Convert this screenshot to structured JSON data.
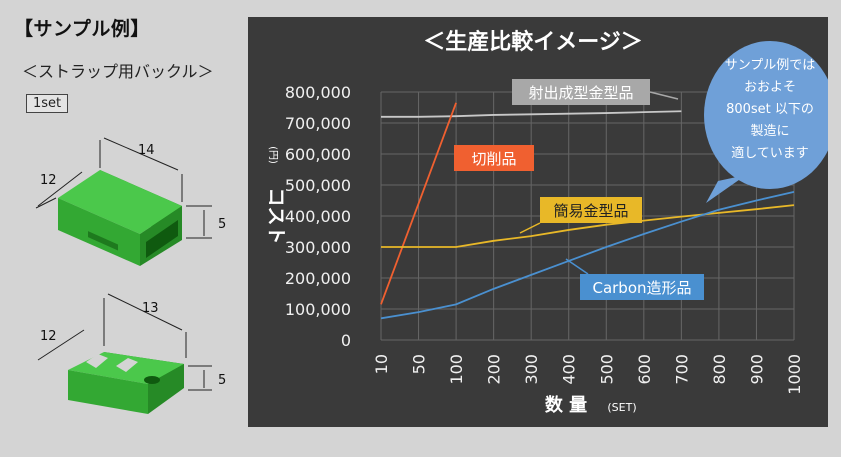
{
  "page": {
    "sample_title": "【サンプル例】",
    "sample_subtitle": "＜ストラップ用バックル＞",
    "quantity_badge": "1set",
    "part1_dims": [
      "14",
      "12",
      "5"
    ],
    "part2_dims": [
      "13",
      "12",
      "5"
    ]
  },
  "chart_data": {
    "type": "line",
    "title": "＜生産比較イメージ＞",
    "xlabel": "数 量",
    "xlabel_unit": "(SET)",
    "ylabel": "コスト",
    "ylabel_unit": "(円)",
    "x": [
      10,
      50,
      100,
      200,
      300,
      400,
      500,
      600,
      700,
      800,
      900,
      1000
    ],
    "x_tick_labels": [
      "10",
      "50",
      "100",
      "200",
      "300",
      "400",
      "500",
      "600",
      "700",
      "800",
      "900",
      "1000"
    ],
    "y_tick_labels": [
      "0",
      "100,000",
      "200,000",
      "300,000",
      "400,000",
      "500,000",
      "600,000",
      "700,000",
      "800,000"
    ],
    "ylim": [
      0,
      800000
    ],
    "grid": true,
    "series": [
      {
        "name": "射出成型金型品",
        "color": "#c8c8c8",
        "x": [
          10,
          50,
          100,
          200,
          300,
          400,
          500,
          600,
          700
        ],
        "values": [
          720000,
          720000,
          722000,
          726000,
          728000,
          730000,
          732000,
          735000,
          738000
        ]
      },
      {
        "name": "切削品",
        "color": "#f06030",
        "x": [
          10,
          100
        ],
        "values": [
          115000,
          765000
        ]
      },
      {
        "name": "簡易金型品",
        "color": "#e8b828",
        "x": [
          10,
          50,
          100,
          200,
          300,
          400,
          500,
          600,
          700,
          800,
          900,
          1000
        ],
        "values": [
          300000,
          300000,
          300000,
          320000,
          335000,
          355000,
          372000,
          385000,
          398000,
          410000,
          422000,
          435000
        ]
      },
      {
        "name": "Carbon造形品",
        "color": "#4a90d0",
        "x": [
          10,
          50,
          100,
          200,
          300,
          400,
          500,
          600,
          700,
          800,
          900,
          1000
        ],
        "values": [
          70000,
          90000,
          115000,
          165000,
          210000,
          255000,
          300000,
          342000,
          382000,
          420000,
          450000,
          478000
        ]
      }
    ],
    "callout": [
      "サンプル例では",
      "おおよそ",
      "800set 以下の",
      "製造に",
      "適しています"
    ]
  }
}
